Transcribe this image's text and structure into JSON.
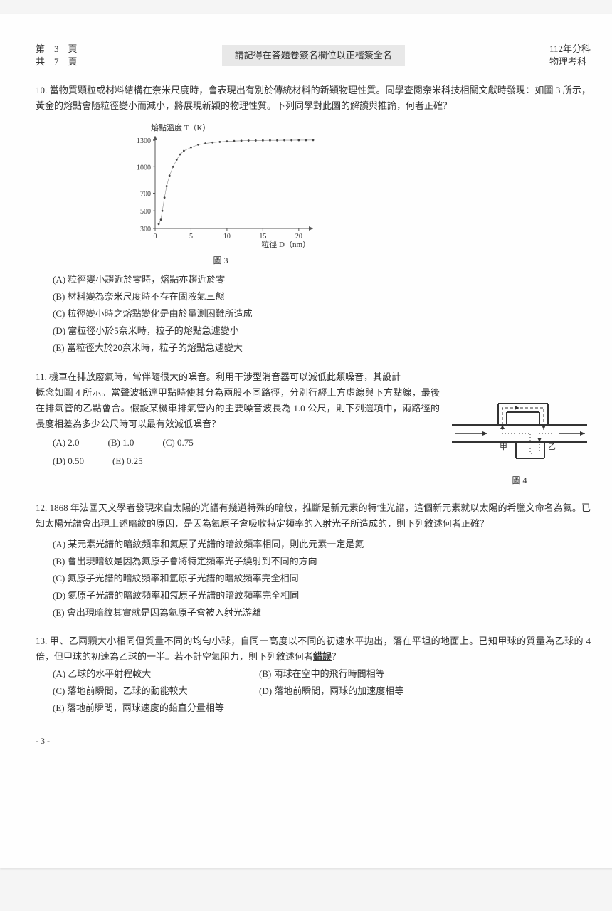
{
  "header": {
    "page_left_line1": "第　3　頁",
    "page_left_line2": "共　7　頁",
    "reminder": "請記得在答題卷簽名欄位以正楷簽全名",
    "year": "112年分科",
    "subject": "物理考科"
  },
  "q10": {
    "num": "10.",
    "text": "當物質顆粒或材料結構在奈米尺度時，會表現出有別於傳統材料的新穎物理性質。同學查閱奈米科技相關文獻時發現：如圖 3 所示，黃金的熔點會隨粒徑變小而減小，將展現新穎的物理性質。下列同學對此圖的解讀與推論，何者正確？",
    "chart": {
      "ylabel": "熔點溫度 T（K）",
      "xlabel": "粒徑 D（nm）",
      "caption": "圖 3",
      "yticks": [
        "1300",
        "1000",
        "700",
        "500",
        "300"
      ],
      "yvals": [
        1300,
        1000,
        700,
        500,
        300
      ],
      "xticks": [
        "0",
        "5",
        "10",
        "15",
        "20"
      ],
      "xvals": [
        0,
        5,
        10,
        15,
        20
      ],
      "points": [
        [
          0.5,
          350
        ],
        [
          0.8,
          400
        ],
        [
          1.0,
          500
        ],
        [
          1.3,
          650
        ],
        [
          1.6,
          780
        ],
        [
          2.0,
          900
        ],
        [
          2.5,
          1000
        ],
        [
          3.0,
          1080
        ],
        [
          3.5,
          1140
        ],
        [
          4.0,
          1180
        ],
        [
          5.0,
          1220
        ],
        [
          6.0,
          1250
        ],
        [
          7.0,
          1265
        ],
        [
          8.0,
          1275
        ],
        [
          9.0,
          1282
        ],
        [
          10,
          1288
        ],
        [
          11,
          1292
        ],
        [
          12,
          1295
        ],
        [
          13,
          1297
        ],
        [
          14,
          1298
        ],
        [
          15,
          1299
        ],
        [
          16,
          1300
        ],
        [
          17,
          1300
        ],
        [
          18,
          1301
        ],
        [
          19,
          1301
        ],
        [
          20,
          1302
        ],
        [
          21,
          1302
        ],
        [
          22,
          1303
        ]
      ],
      "axis_color": "#555555",
      "point_color": "#444444",
      "bg": "#fefefe",
      "xmin": 0,
      "xmax": 22,
      "ymin": 300,
      "ymax": 1350
    },
    "opts": {
      "A": "(A) 粒徑變小趨近於零時，熔點亦趨近於零",
      "B": "(B) 材料變為奈米尺度時不存在固液氣三態",
      "C": "(C) 粒徑變小時之熔點變化是由於量測困難所造成",
      "D": "(D) 當粒徑小於5奈米時，粒子的熔點急遽變小",
      "E": "(E) 當粒徑大於20奈米時，粒子的熔點急遽變大"
    }
  },
  "q11": {
    "num": "11.",
    "text_head": "機車在排放廢氣時，常伴隨很大的噪音。利用干涉型消音器可以減低此類噪音，其設計",
    "text_body": "概念如圖 4 所示。當聲波抵達甲點時使其分為兩股不同路徑，分別行經上方虛線與下方點線，最後在排氣管的乙點會合。假設某機車排氣管內的主要噪音波長為 1.0 公尺，則下列選項中，兩路徑的長度相差為多少公尺時可以最有效減低噪音？",
    "opts": {
      "A": "(A) 2.0",
      "B": "(B) 1.0",
      "C": "(C) 0.75",
      "D": "(D) 0.50",
      "E": "(E) 0.25"
    },
    "fig": {
      "caption": "圖 4",
      "label_jia": "甲",
      "label_yi": "乙",
      "line_color": "#333333",
      "dash_color": "#333333"
    }
  },
  "q12": {
    "num": "12.",
    "text": "1868 年法國天文學者發現來自太陽的光譜有幾道特殊的暗紋，推斷是新元素的特性光譜，這個新元素就以太陽的希臘文命名為氦。已知太陽光譜會出現上述暗紋的原因，是因為氦原子會吸收特定頻率的入射光子所造成的，則下列敘述何者正確？",
    "opts": {
      "A": "(A) 某元素光譜的暗紋頻率和氦原子光譜的暗紋頻率相同，則此元素一定是氦",
      "B": "(B) 會出現暗紋是因為氦原子會將特定頻率光子繞射到不同的方向",
      "C": "(C) 氦原子光譜的暗紋頻率和氫原子光譜的暗紋頻率完全相同",
      "D": "(D) 氦原子光譜的暗紋頻率和氖原子光譜的暗紋頻率完全相同",
      "E": "(E) 會出現暗紋其實就是因為氦原子會被入射光游離"
    }
  },
  "q13": {
    "num": "13.",
    "text1": "甲、乙兩顆大小相同但質量不同的均勻小球，自同一高度以不同的初速水平拋出，落在平坦的地面上。已知甲球的質量為乙球的 4 倍，但甲球的初速為乙球的一半。若不計空氣阻力，則下列敘述何者",
    "bold": "錯誤",
    "text2": "？",
    "opts": {
      "A": "(A) 乙球的水平射程較大",
      "B": "(B) 兩球在空中的飛行時間相等",
      "C": "(C) 落地前瞬間，乙球的動能較大",
      "D": "(D) 落地前瞬間，兩球的加速度相等",
      "E": "(E) 落地前瞬間，兩球速度的鉛直分量相等"
    }
  },
  "footer": "- 3 -"
}
